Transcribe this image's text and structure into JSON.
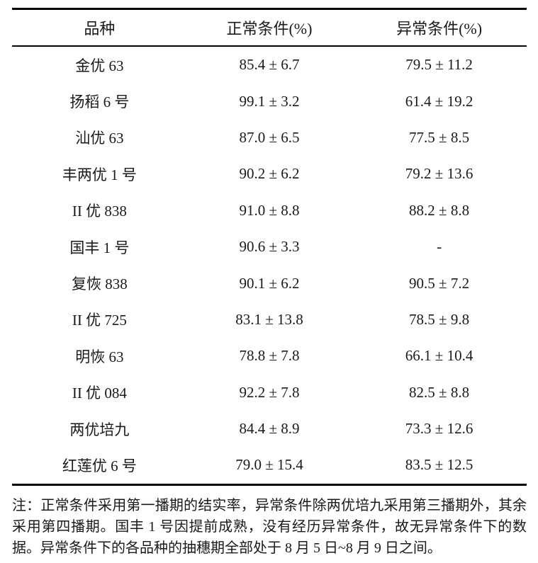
{
  "table": {
    "headers": {
      "variety": "品种",
      "normal": "正常条件(%)",
      "abnormal": "异常条件(%)"
    },
    "rows": [
      {
        "variety": "金优 63",
        "normal": "85.4 ± 6.7",
        "abnormal": "79.5 ± 11.2"
      },
      {
        "variety": "扬稻 6 号",
        "normal": "99.1 ± 3.2",
        "abnormal": "61.4 ± 19.2"
      },
      {
        "variety": "汕优 63",
        "normal": "87.0 ± 6.5",
        "abnormal": "77.5 ± 8.5"
      },
      {
        "variety": "丰两优 1 号",
        "normal": "90.2 ± 6.2",
        "abnormal": "79.2 ± 13.6"
      },
      {
        "variety": "II 优 838",
        "normal": "91.0 ± 8.8",
        "abnormal": "88.2 ± 8.8"
      },
      {
        "variety": "国丰 1 号",
        "normal": "90.6 ± 3.3",
        "abnormal": "-"
      },
      {
        "variety": "复恢 838",
        "normal": "90.1 ± 6.2",
        "abnormal": "90.5 ± 7.2"
      },
      {
        "variety": "II 优 725",
        "normal": "83.1 ± 13.8",
        "abnormal": "78.5 ± 9.8"
      },
      {
        "variety": "明恢 63",
        "normal": "78.8 ± 7.8",
        "abnormal": "66.1 ± 10.4"
      },
      {
        "variety": "II 优 084",
        "normal": "92.2 ± 7.8",
        "abnormal": "82.5 ± 8.8"
      },
      {
        "variety": "两优培九",
        "normal": "84.4 ± 8.9",
        "abnormal": "73.3 ± 12.6"
      },
      {
        "variety": "红莲优 6 号",
        "normal": "79.0 ± 15.4",
        "abnormal": "83.5 ± 12.5"
      }
    ]
  },
  "note": {
    "text": "注：正常条件采用第一播期的结实率，异常条件除两优培九采用第三播期外，其余采用第四播期。国丰 1 号因提前成熟，没有经历异常条件，故无异常条件下的数据。异常条件下的各品种的抽穗期全部处于 8 月 5 日~8 月 9 日之间。"
  },
  "colors": {
    "text": "#1a1a1a",
    "rule": "#000000",
    "background": "#ffffff"
  }
}
